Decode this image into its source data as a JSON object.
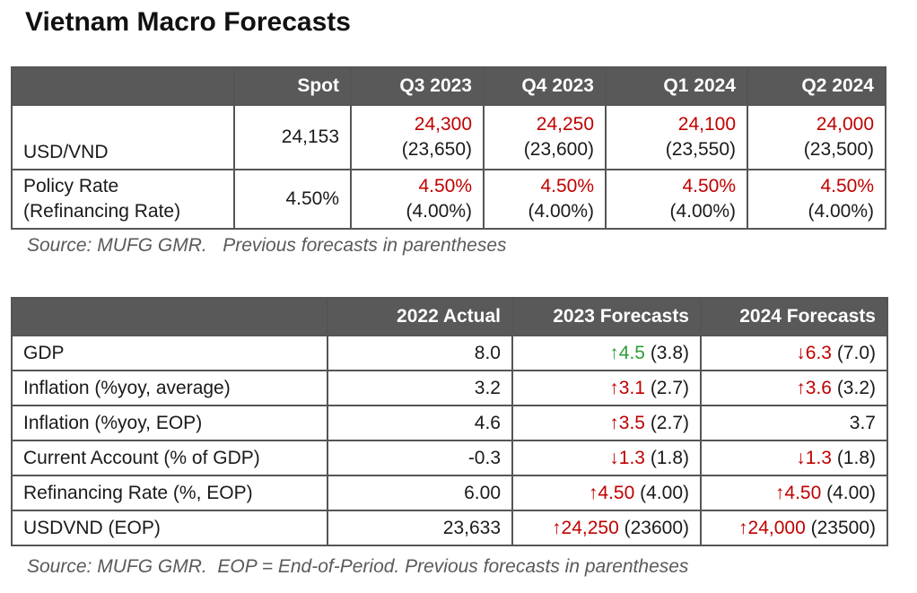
{
  "title": "Vietnam Macro Forecasts",
  "table1": {
    "headers": [
      "",
      "Spot",
      "Q3 2023",
      "Q4 2023",
      "Q1 2024",
      "Q2 2024"
    ],
    "rows": [
      {
        "label": "USD/VND",
        "spot": "24,153",
        "forecasts": [
          {
            "new": "24,300",
            "prev": "(23,650)"
          },
          {
            "new": "24,250",
            "prev": "(23,600)"
          },
          {
            "new": "24,100",
            "prev": "(23,550)"
          },
          {
            "new": "24,000",
            "prev": "(23,500)"
          }
        ]
      },
      {
        "label_line1": "Policy Rate",
        "label_line2": "(Refinancing Rate)",
        "spot": "4.50%",
        "forecasts": [
          {
            "new": "4.50%",
            "prev": "(4.00%)"
          },
          {
            "new": "4.50%",
            "prev": "(4.00%)"
          },
          {
            "new": "4.50%",
            "prev": "(4.00%)"
          },
          {
            "new": "4.50%",
            "prev": "(4.00%)"
          }
        ]
      }
    ],
    "source": "Source: MUFG GMR.   Previous forecasts in parentheses"
  },
  "table2": {
    "headers": [
      "",
      "2022 Actual",
      "2023 Forecasts",
      "2024 Forecasts"
    ],
    "rows": [
      {
        "label": "GDP",
        "actual": "8.0",
        "f2023": {
          "arrow": "↑",
          "value": "4.5",
          "prev": " (3.8)",
          "color": "green"
        },
        "f2024": {
          "arrow": "↓",
          "value": "6.3",
          "prev": " (7.0)",
          "color": "red"
        }
      },
      {
        "label": "Inflation (%yoy, average)",
        "actual": "3.2",
        "f2023": {
          "arrow": "↑",
          "value": "3.1",
          "prev": " (2.7)",
          "color": "red"
        },
        "f2024": {
          "arrow": "↑",
          "value": "3.6",
          "prev": " (3.2)",
          "color": "red"
        }
      },
      {
        "label": "Inflation (%yoy, EOP)",
        "actual": "4.6",
        "f2023": {
          "arrow": "↑",
          "value": "3.5",
          "prev": " (2.7)",
          "color": "red"
        },
        "f2024": {
          "arrow": "",
          "value": "",
          "prev": "3.7",
          "color": "none"
        }
      },
      {
        "label": "Current Account (% of GDP)",
        "actual": "-0.3",
        "f2023": {
          "arrow": "↓",
          "value": "1.3",
          "prev": " (1.8)",
          "color": "red"
        },
        "f2024": {
          "arrow": "↓",
          "value": "1.3",
          "prev": " (1.8)",
          "color": "red"
        }
      },
      {
        "label": "Refinancing Rate (%, EOP)",
        "actual": "6.00",
        "f2023": {
          "arrow": "↑",
          "value": "4.50",
          "prev": " (4.00)",
          "color": "red"
        },
        "f2024": {
          "arrow": "↑",
          "value": "4.50",
          "prev": " (4.00)",
          "color": "red"
        }
      },
      {
        "label": "USDVND (EOP)",
        "actual": "23,633",
        "f2023": {
          "arrow": "↑",
          "value": "24,250",
          "prev": " (23600)",
          "color": "red"
        },
        "f2024": {
          "arrow": "↑",
          "value": "24,000",
          "prev": " (23500)",
          "color": "red"
        }
      }
    ],
    "source": "Source: MUFG GMR.  EOP = End-of-Period. Previous forecasts in parentheses"
  },
  "colors": {
    "header_bg": "#595959",
    "forecast_red": "#c00000",
    "forecast_green": "#2e9e3a",
    "source_gray": "#5a5a5a"
  }
}
